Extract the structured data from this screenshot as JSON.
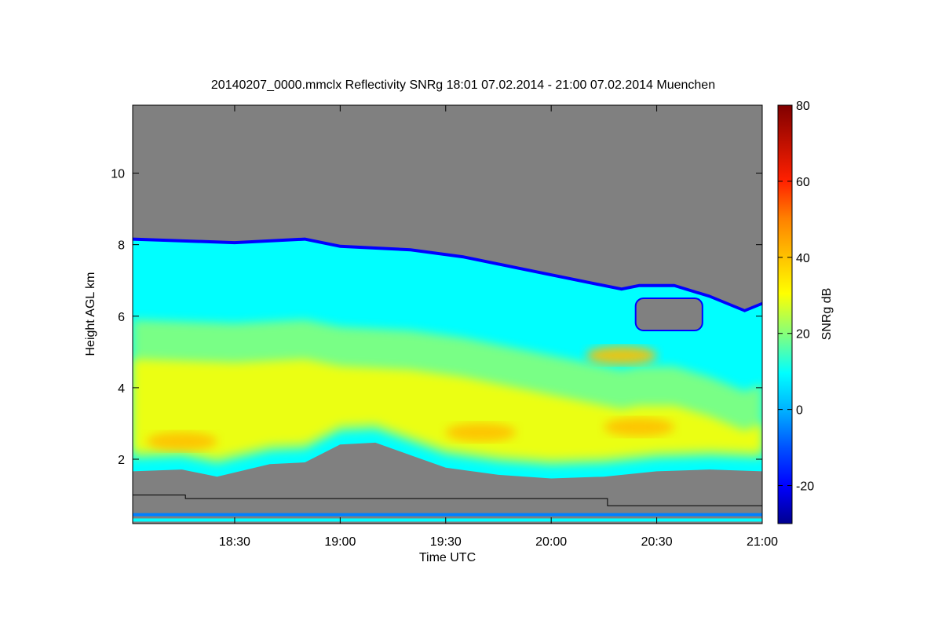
{
  "chart_data": {
    "type": "heatmap",
    "title": "20140207_0000.mmclx Reflectivity SNRg   18:01 07.02.2014 - 21:00 07.02.2014 Muenchen",
    "xlabel": "Time UTC",
    "ylabel": "Height AGL km",
    "colorbar_label": "SNRg dB",
    "x_range": [
      "18:01",
      "21:00"
    ],
    "x_ticks": [
      "18:30",
      "19:00",
      "19:30",
      "20:00",
      "20:30",
      "21:00"
    ],
    "y_range": [
      0.2,
      11.9
    ],
    "y_ticks": [
      2,
      4,
      6,
      8,
      10
    ],
    "colorbar_range": [
      -30,
      80
    ],
    "colorbar_ticks": [
      -20,
      0,
      20,
      40,
      60,
      80
    ],
    "colormap": [
      "#00008f",
      "#0000ff",
      "#0080ff",
      "#00ffff",
      "#80ff80",
      "#ffff00",
      "#ff8000",
      "#ff0000",
      "#800000"
    ],
    "background_color": "#808080",
    "cloud_top_km": [
      [
        "18:01",
        8.2
      ],
      [
        "18:30",
        8.1
      ],
      [
        "18:50",
        8.2
      ],
      [
        "19:00",
        8.0
      ],
      [
        "19:20",
        7.9
      ],
      [
        "19:35",
        7.7
      ],
      [
        "19:50",
        7.4
      ],
      [
        "20:00",
        7.2
      ],
      [
        "20:10",
        7.0
      ],
      [
        "20:20",
        6.8
      ],
      [
        "20:25",
        6.9
      ],
      [
        "20:35",
        6.9
      ],
      [
        "20:45",
        6.6
      ],
      [
        "20:55",
        6.2
      ],
      [
        "21:00",
        6.4
      ]
    ],
    "cloud_base_km": [
      [
        "18:01",
        1.75
      ],
      [
        "18:15",
        1.8
      ],
      [
        "18:25",
        1.6
      ],
      [
        "18:40",
        1.95
      ],
      [
        "18:50",
        2.0
      ],
      [
        "19:00",
        2.5
      ],
      [
        "19:10",
        2.55
      ],
      [
        "19:20",
        2.2
      ],
      [
        "19:30",
        1.85
      ],
      [
        "19:45",
        1.65
      ],
      [
        "20:00",
        1.55
      ],
      [
        "20:15",
        1.6
      ],
      [
        "20:30",
        1.75
      ],
      [
        "20:45",
        1.8
      ],
      [
        "21:00",
        1.75
      ]
    ],
    "gap_region": {
      "x_start": "20:24",
      "x_end": "20:43",
      "top_km": 6.5,
      "bottom_km": 5.6
    },
    "max_snr_patches_db": [
      {
        "x": "18:15",
        "y_km": 2.5,
        "snr": 42
      },
      {
        "x": "19:40",
        "y_km": 2.75,
        "snr": 48
      },
      {
        "x": "20:25",
        "y_km": 2.9,
        "snr": 48
      },
      {
        "x": "20:20",
        "y_km": 4.9,
        "snr": 42
      }
    ],
    "low_layer_lines_km": [
      0.3,
      0.45
    ],
    "black_step_line_km": [
      [
        "18:01",
        1.0
      ],
      [
        "18:16",
        1.0
      ],
      [
        "18:16",
        0.9
      ],
      [
        "20:16",
        0.9
      ],
      [
        "20:16",
        0.7
      ],
      [
        "21:00",
        0.7
      ]
    ]
  }
}
